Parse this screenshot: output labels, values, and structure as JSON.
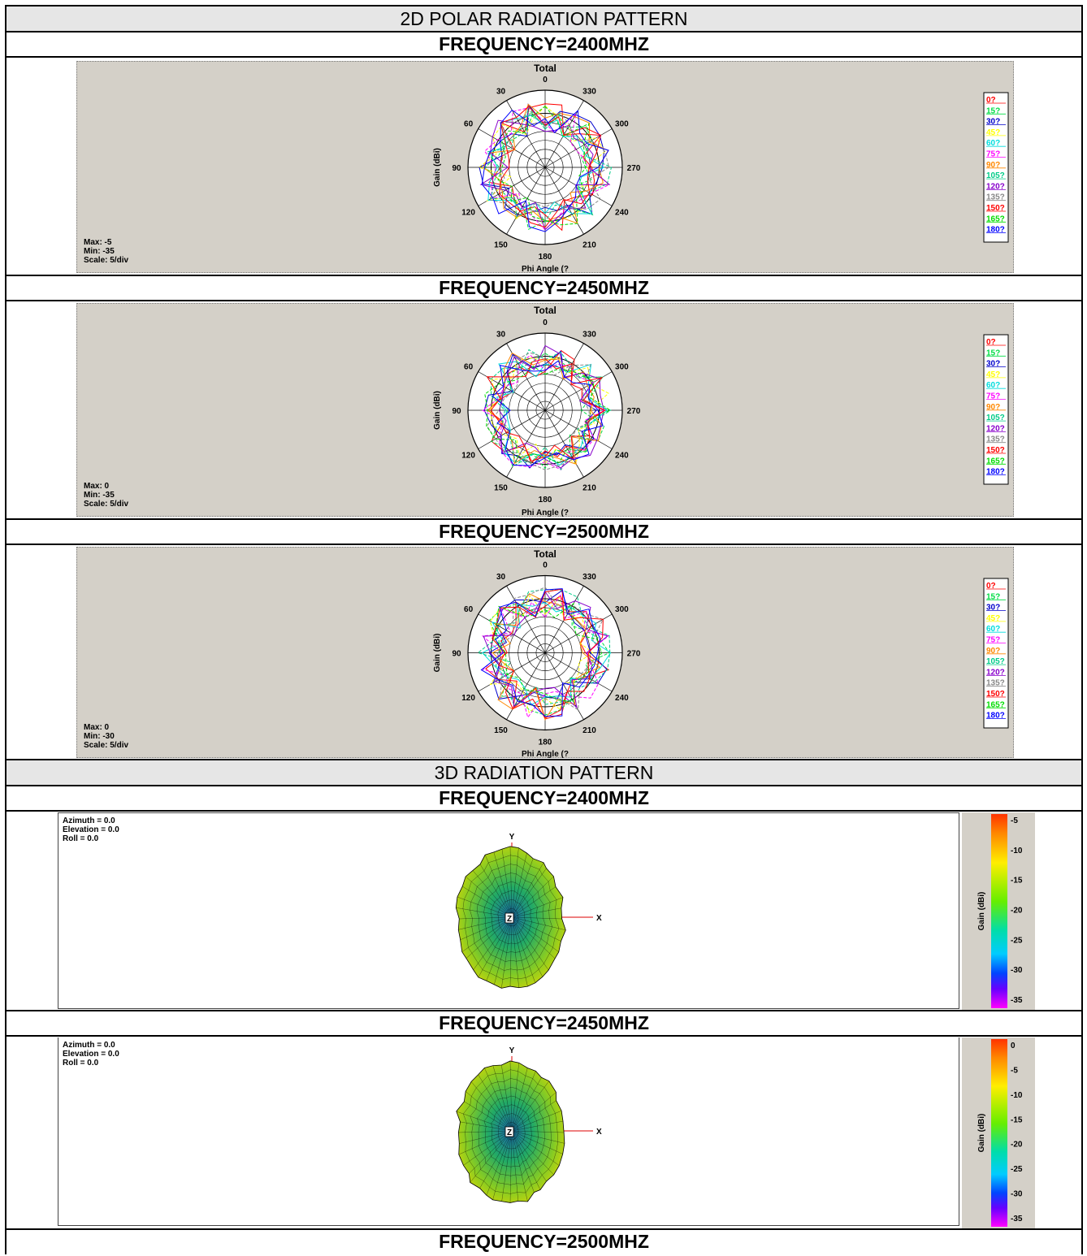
{
  "sections": {
    "polar_title": "2D POLAR RADIATION PATTERN",
    "pattern3d_title": "3D RADIATION PATTERN"
  },
  "polar_plots": [
    {
      "frequency": "FREQUENCY=2400MHZ",
      "title": "Total",
      "ylabel": "Gain  (dBi)",
      "xlabel": "Phi Angle  (?",
      "max": "Max: -5",
      "min": "Min: -35",
      "scale": "Scale: 5/div"
    },
    {
      "frequency": "FREQUENCY=2450MHZ",
      "title": "Total",
      "ylabel": "Gain  (dBi)",
      "xlabel": "Phi Angle  (?",
      "max": "Max: 0",
      "min": "Min: -35",
      "scale": "Scale: 5/div"
    },
    {
      "frequency": "FREQUENCY=2500MHZ",
      "title": "Total",
      "ylabel": "Gain  (dBi)",
      "xlabel": "Phi Angle  (?",
      "max": "Max: 0",
      "min": "Min: -30",
      "scale": "Scale: 5/div"
    }
  ],
  "pattern3d": [
    {
      "frequency": "FREQUENCY=2400MHZ",
      "azimuth": "Azimuth = 0.0",
      "elevation": "Elevation = 0.0",
      "roll": "Roll = 0.0",
      "axis_y": "Y",
      "axis_x": "X",
      "axis_z": "Z",
      "bar_label": "Gain  (dBi)",
      "bar_ticks": [
        "-5",
        "-10",
        "-15",
        "-20",
        "-25",
        "-30",
        "-35"
      ]
    },
    {
      "frequency": "FREQUENCY=2450MHZ",
      "azimuth": "Azimuth = 0.0",
      "elevation": "Elevation = 0.0",
      "roll": "Roll = 0.0",
      "axis_y": "Y",
      "axis_x": "X",
      "axis_z": "Z",
      "bar_label": "Gain  (dBi)",
      "bar_ticks": [
        "0",
        "-5",
        "-10",
        "-15",
        "-20",
        "-25",
        "-30",
        "-35"
      ]
    },
    {
      "frequency": "FREQUENCY=2500MHZ"
    }
  ],
  "angle_labels": [
    "0",
    "330",
    "300",
    "270",
    "240",
    "210",
    "180",
    "150",
    "120",
    "90",
    "60",
    "30"
  ],
  "legend": [
    {
      "label": "0?",
      "color": "#ff0000"
    },
    {
      "label": "15?",
      "color": "#00dd44"
    },
    {
      "label": "30?",
      "color": "#0000cc"
    },
    {
      "label": "45?",
      "color": "#ffff00"
    },
    {
      "label": "60?",
      "color": "#00dddd"
    },
    {
      "label": "75?",
      "color": "#ff00ff"
    },
    {
      "label": "90?",
      "color": "#ff8800"
    },
    {
      "label": "105?",
      "color": "#00cc88"
    },
    {
      "label": "120?",
      "color": "#8800cc"
    },
    {
      "label": "135?",
      "color": "#888888"
    },
    {
      "label": "150?",
      "color": "#ff0000"
    },
    {
      "label": "165?",
      "color": "#00dd00"
    },
    {
      "label": "180?",
      "color": "#0000ff"
    }
  ],
  "chart_data": [
    {
      "type": "polar",
      "title": "Total",
      "frequency": "2400MHZ",
      "rlim": [
        -35,
        -5
      ],
      "scale_db_per_div": 5,
      "series": [
        "0?",
        "15?",
        "30?",
        "45?",
        "60?",
        "75?",
        "90?",
        "105?",
        "120?",
        "135?",
        "150?",
        "165?",
        "180?"
      ],
      "theta_ticks": [
        0,
        30,
        60,
        90,
        120,
        150,
        180,
        210,
        240,
        270,
        300,
        330
      ]
    },
    {
      "type": "polar",
      "title": "Total",
      "frequency": "2450MHZ",
      "rlim": [
        -35,
        0
      ],
      "scale_db_per_div": 5,
      "series": [
        "0?",
        "15?",
        "30?",
        "45?",
        "60?",
        "75?",
        "90?",
        "105?",
        "120?",
        "135?",
        "150?",
        "165?",
        "180?"
      ],
      "theta_ticks": [
        0,
        30,
        60,
        90,
        120,
        150,
        180,
        210,
        240,
        270,
        300,
        330
      ]
    },
    {
      "type": "polar",
      "title": "Total",
      "frequency": "2500MHZ",
      "rlim": [
        -30,
        0
      ],
      "scale_db_per_div": 5,
      "series": [
        "0?",
        "15?",
        "30?",
        "45?",
        "60?",
        "75?",
        "90?",
        "105?",
        "120?",
        "135?",
        "150?",
        "165?",
        "180?"
      ],
      "theta_ticks": [
        0,
        30,
        60,
        90,
        120,
        150,
        180,
        210,
        240,
        270,
        300,
        330
      ]
    }
  ]
}
